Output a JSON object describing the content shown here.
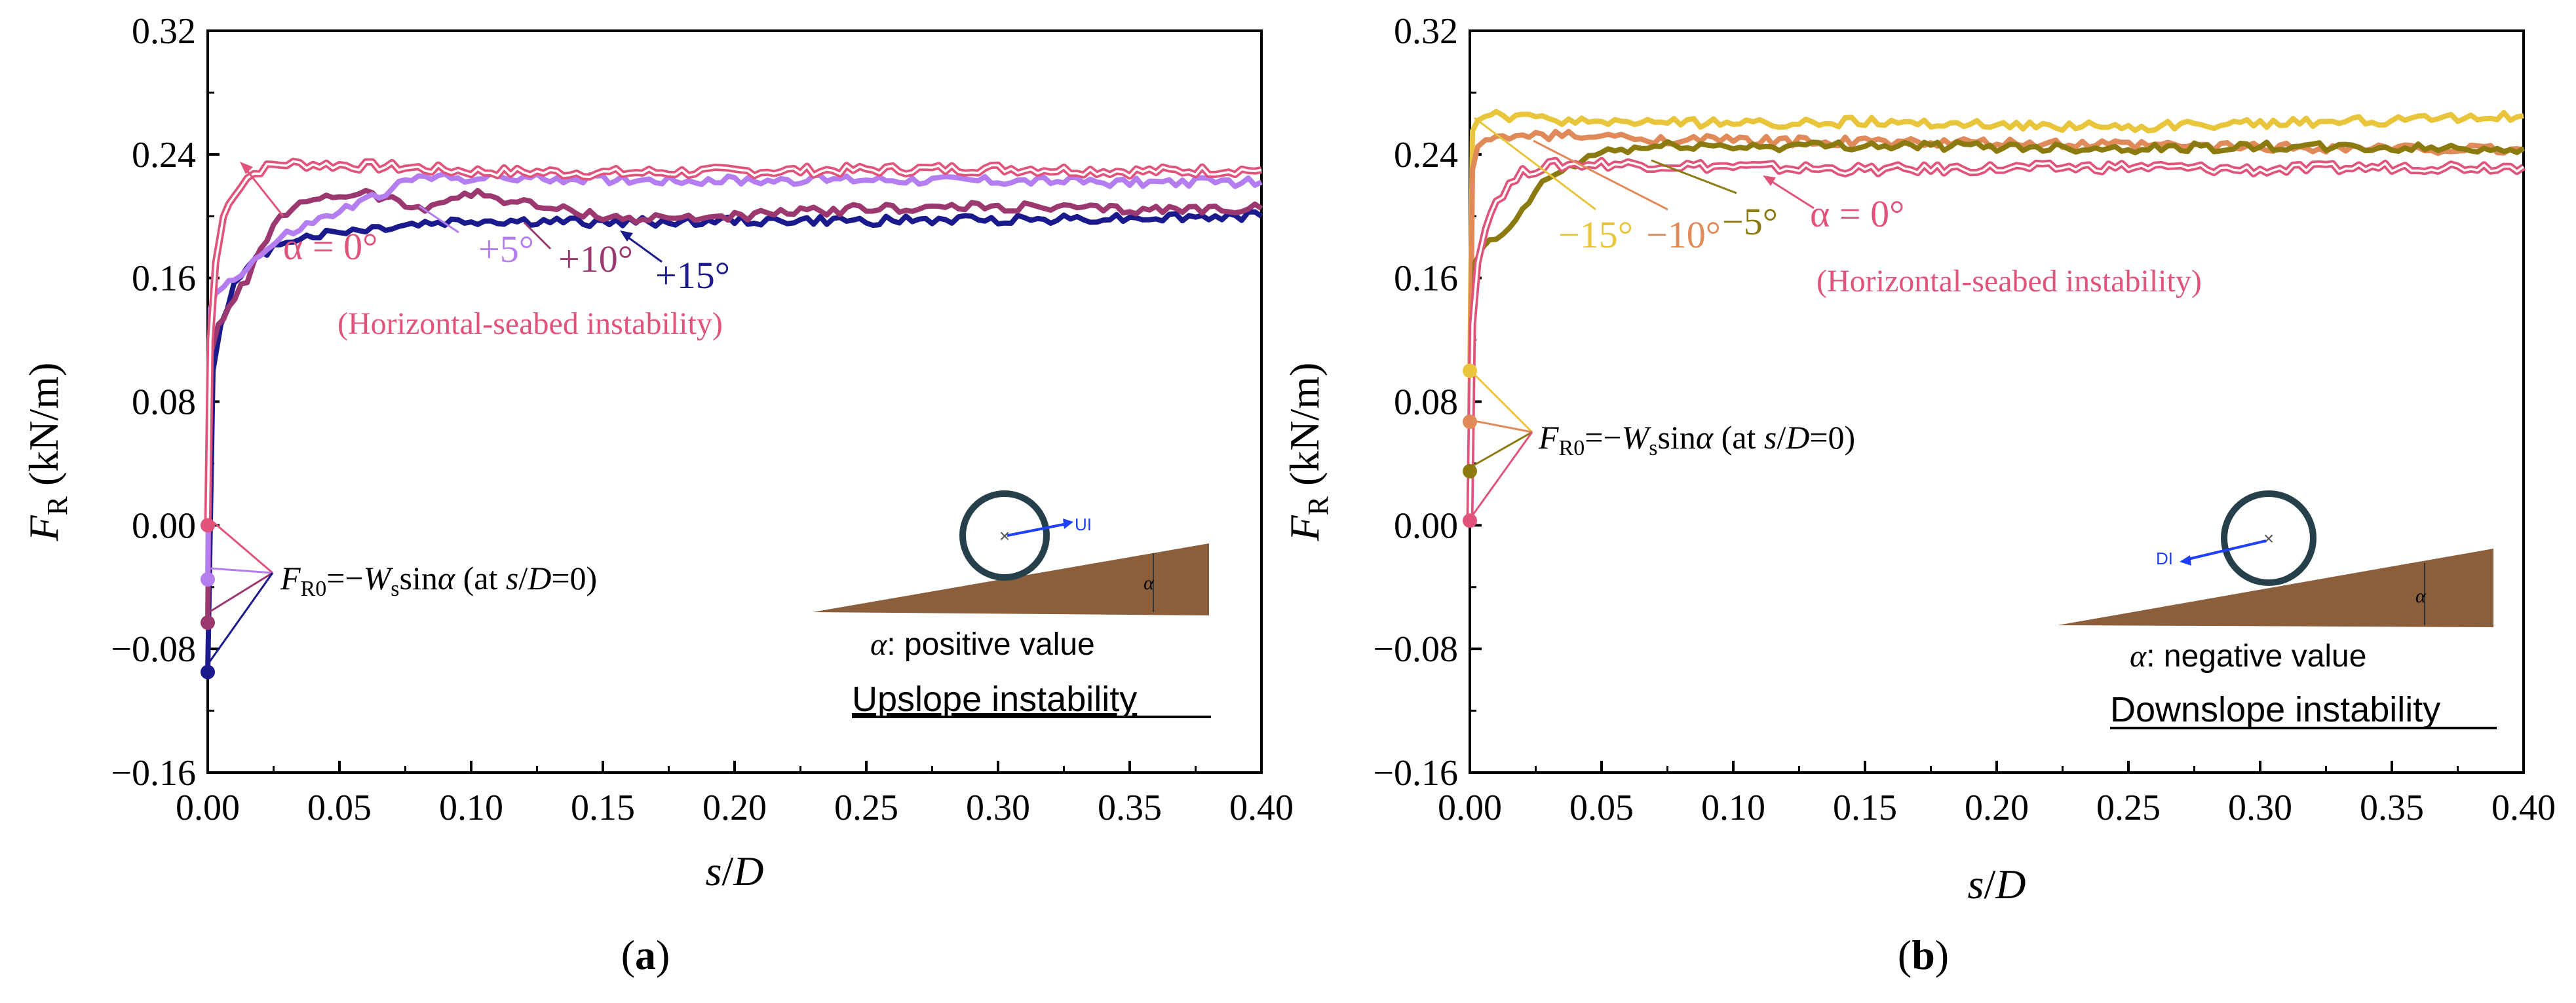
{
  "chart_data": [
    {
      "type": "line",
      "panel_label": "a",
      "xlabel_s": "s",
      "xlabel_slash": "/",
      "xlabel_d": "D",
      "ylabel_f": "F",
      "ylabel_sub": "R",
      "ylabel_unit": " (kN/m)",
      "xlim": [
        0,
        0.4
      ],
      "ylim": [
        -0.16,
        0.32
      ],
      "xticks": [
        "0.00",
        "0.05",
        "0.10",
        "0.15",
        "0.20",
        "0.25",
        "0.30",
        "0.35",
        "0.40"
      ],
      "yticks": [
        "−0.16",
        "−0.08",
        "0.00",
        "0.08",
        "0.16",
        "0.24",
        "0.32"
      ],
      "series": [
        {
          "name": "α = 0°",
          "color": "#e0537a",
          "double": true,
          "x": [
            0,
            0.001,
            0.003,
            0.006,
            0.01,
            0.015,
            0.02,
            0.025,
            0.03,
            0.05,
            0.07,
            0.1,
            0.15,
            0.2,
            0.25,
            0.3,
            0.35,
            0.4
          ],
          "y": [
            0.0,
            0.12,
            0.17,
            0.2,
            0.215,
            0.225,
            0.23,
            0.233,
            0.234,
            0.233,
            0.232,
            0.229,
            0.228,
            0.229,
            0.23,
            0.231,
            0.229,
            0.23
          ]
        },
        {
          "name": "+5°",
          "color": "#b57ef0",
          "double": false,
          "x": [
            0,
            0.001,
            0.003,
            0.006,
            0.01,
            0.02,
            0.03,
            0.04,
            0.05,
            0.06,
            0.07,
            0.08,
            0.1,
            0.15,
            0.2,
            0.25,
            0.3,
            0.35,
            0.4
          ],
          "y": [
            -0.035,
            0.14,
            0.15,
            0.155,
            0.16,
            0.175,
            0.188,
            0.196,
            0.203,
            0.21,
            0.218,
            0.225,
            0.225,
            0.224,
            0.223,
            0.224,
            0.223,
            0.222,
            0.222
          ]
        },
        {
          "name": "+10°",
          "color": "#9c3870",
          "double": false,
          "x": [
            0,
            0.001,
            0.004,
            0.008,
            0.015,
            0.025,
            0.04,
            0.06,
            0.08,
            0.1,
            0.13,
            0.16,
            0.2,
            0.25,
            0.3,
            0.35,
            0.4
          ],
          "y": [
            -0.063,
            0.11,
            0.13,
            0.14,
            0.16,
            0.195,
            0.212,
            0.215,
            0.205,
            0.215,
            0.205,
            0.198,
            0.2,
            0.205,
            0.206,
            0.204,
            0.205
          ]
        },
        {
          "name": "+15°",
          "color": "#1a1a8c",
          "double": false,
          "x": [
            0,
            0.002,
            0.005,
            0.01,
            0.02,
            0.03,
            0.05,
            0.08,
            0.1,
            0.15,
            0.2,
            0.25,
            0.3,
            0.35,
            0.4
          ],
          "y": [
            -0.095,
            0.1,
            0.13,
            0.155,
            0.175,
            0.185,
            0.19,
            0.195,
            0.197,
            0.196,
            0.197,
            0.197,
            0.198,
            0.199,
            0.2
          ]
        }
      ],
      "annotations": [
        {
          "text": "α = 0°",
          "color": "#e0537a"
        },
        {
          "text": "+5°",
          "color": "#b57ef0"
        },
        {
          "text": "+10°",
          "color": "#9c3870"
        },
        {
          "text": "+15°",
          "color": "#1a1a8c"
        },
        {
          "text": "(Horizontal-seabed instability)",
          "color": "#e0537a"
        }
      ],
      "formula": {
        "f": "F",
        "sub": "R0",
        "eq": "=−",
        "w": "W",
        "ws": "s",
        "sin": "sin",
        "alpha": "α",
        "tail1": " (at ",
        "s": "s",
        "slash": "/",
        "d": "D",
        "tail2": "=0)"
      },
      "inset": {
        "dir_label": "UI",
        "alpha": "α",
        "desc_alpha": "α",
        "desc_rest": ": positive value",
        "title": "Upslope instability"
      }
    },
    {
      "type": "line",
      "panel_label": "b",
      "xlabel_s": "s",
      "xlabel_slash": "/",
      "xlabel_d": "D",
      "ylabel_f": "F",
      "ylabel_sub": "R",
      "ylabel_unit": " (kN/m)",
      "xlim": [
        0,
        0.4
      ],
      "ylim": [
        -0.16,
        0.32
      ],
      "xticks": [
        "0.00",
        "0.05",
        "0.10",
        "0.15",
        "0.20",
        "0.25",
        "0.30",
        "0.35",
        "0.40"
      ],
      "yticks": [
        "−0.16",
        "−0.08",
        "0.00",
        "0.08",
        "0.16",
        "0.24",
        "0.32"
      ],
      "series": [
        {
          "name": "α = 0°",
          "color": "#e0537a",
          "double": true,
          "x": [
            0,
            0.001,
            0.003,
            0.006,
            0.01,
            0.015,
            0.02,
            0.03,
            0.05,
            0.1,
            0.15,
            0.2,
            0.25,
            0.3,
            0.35,
            0.4
          ],
          "y": [
            0.003,
            0.13,
            0.17,
            0.195,
            0.21,
            0.22,
            0.228,
            0.233,
            0.234,
            0.232,
            0.23,
            0.231,
            0.232,
            0.23,
            0.232,
            0.232
          ]
        },
        {
          "name": "−5°",
          "color": "#8a7a10",
          "double": false,
          "x": [
            0,
            0.002,
            0.005,
            0.01,
            0.015,
            0.02,
            0.03,
            0.05,
            0.08,
            0.1,
            0.15,
            0.2,
            0.25,
            0.3,
            0.35,
            0.4
          ],
          "y": [
            0.035,
            0.17,
            0.18,
            0.185,
            0.19,
            0.205,
            0.225,
            0.242,
            0.246,
            0.245,
            0.246,
            0.245,
            0.244,
            0.245,
            0.244,
            0.244
          ]
        },
        {
          "name": "−10°",
          "color": "#e08a5a",
          "double": false,
          "x": [
            0,
            0.001,
            0.003,
            0.006,
            0.01,
            0.02,
            0.04,
            0.07,
            0.1,
            0.15,
            0.2,
            0.25,
            0.3,
            0.35,
            0.4
          ],
          "y": [
            0.067,
            0.23,
            0.245,
            0.248,
            0.25,
            0.252,
            0.252,
            0.25,
            0.249,
            0.248,
            0.247,
            0.246,
            0.245,
            0.244,
            0.243
          ]
        },
        {
          "name": "−15°",
          "color": "#e8c53a",
          "double": false,
          "x": [
            0,
            0.001,
            0.003,
            0.006,
            0.01,
            0.03,
            0.06,
            0.1,
            0.15,
            0.2,
            0.25,
            0.3,
            0.35,
            0.4
          ],
          "y": [
            0.1,
            0.255,
            0.262,
            0.264,
            0.265,
            0.262,
            0.261,
            0.26,
            0.261,
            0.259,
            0.258,
            0.26,
            0.262,
            0.265
          ]
        }
      ],
      "annotations": [
        {
          "text": "−15°",
          "color": "#e8c53a"
        },
        {
          "text": "−10°",
          "color": "#e08a5a"
        },
        {
          "text": "−5°",
          "color": "#8a7a10"
        },
        {
          "text": "α = 0°",
          "color": "#e0537a"
        },
        {
          "text": "(Horizontal-seabed instability)",
          "color": "#e0537a"
        }
      ],
      "formula": {
        "f": "F",
        "sub": "R0",
        "eq": "=−",
        "w": "W",
        "ws": "s",
        "sin": "sin",
        "alpha": "α",
        "tail1": " (at ",
        "s": "s",
        "slash": "/",
        "d": "D",
        "tail2": "=0)"
      },
      "inset": {
        "dir_label": "DI",
        "alpha": "α",
        "desc_alpha": "α",
        "desc_rest": ": negative value",
        "title": "Downslope instability"
      }
    }
  ]
}
